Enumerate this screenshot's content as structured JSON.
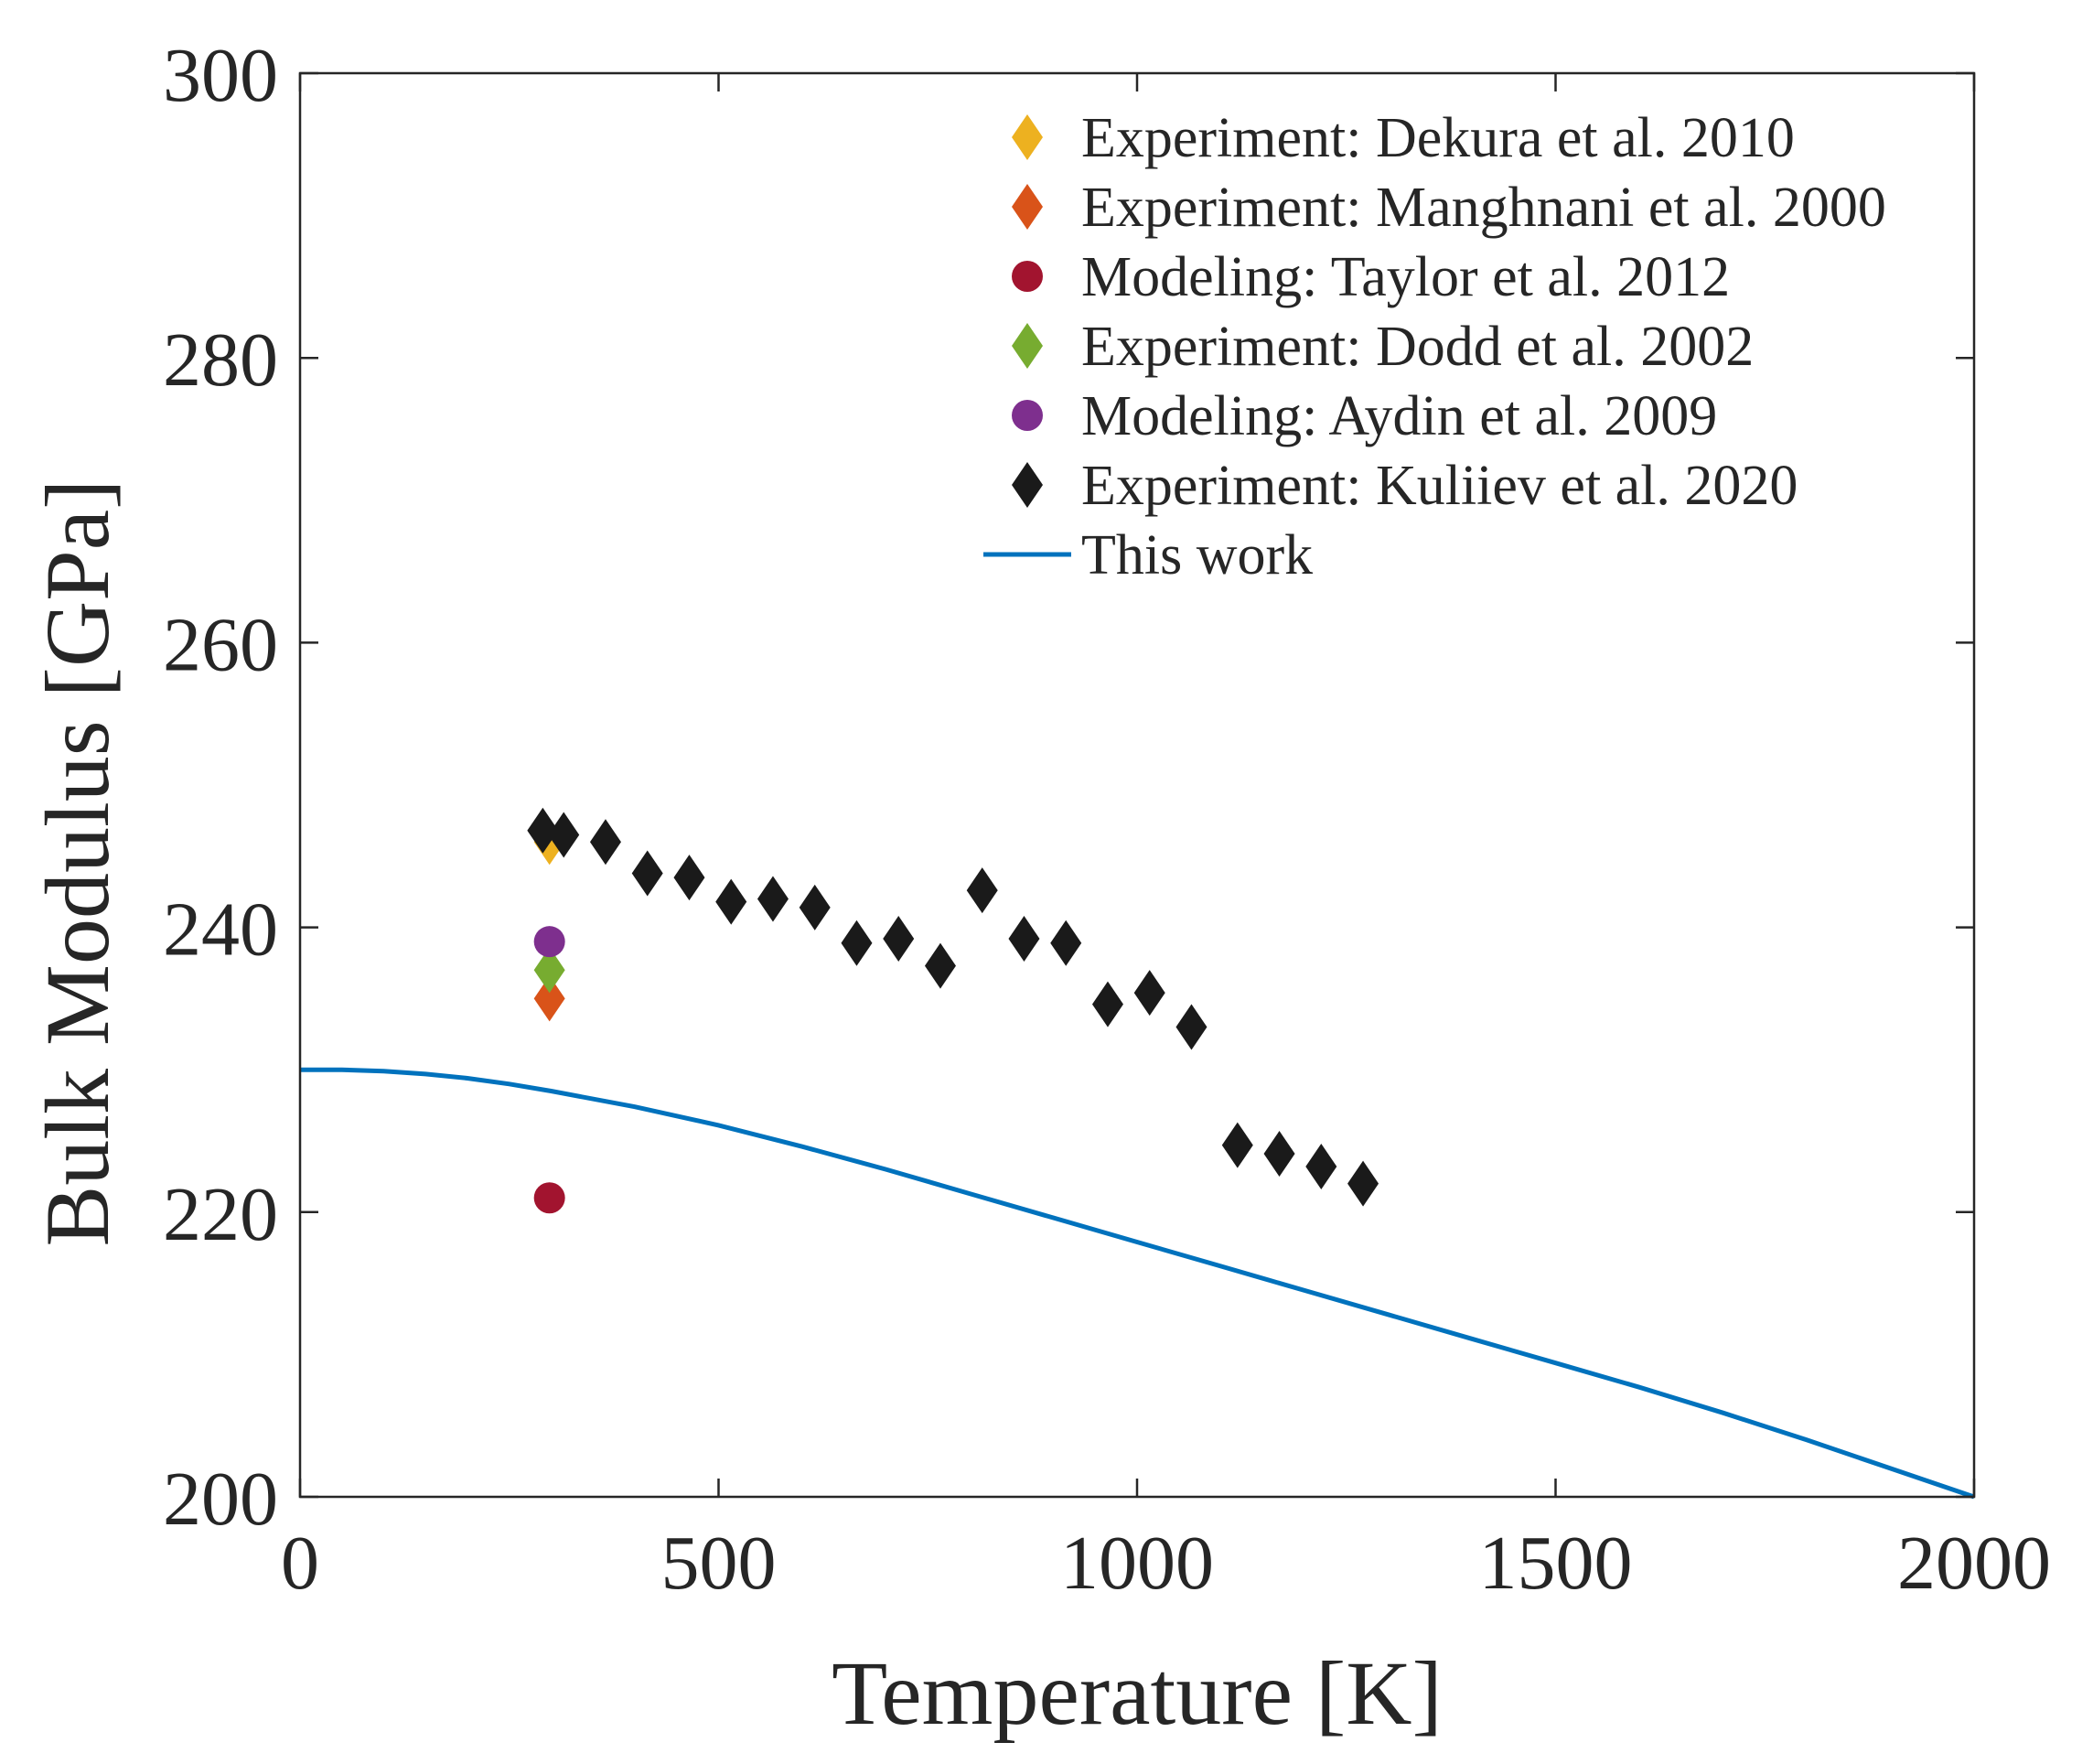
{
  "chart_data": {
    "type": "scatter",
    "xlabel": "Temperature [K]",
    "ylabel": "Bulk Modulus [GPa]",
    "xlim": [
      0,
      2000
    ],
    "ylim": [
      200,
      300
    ],
    "xticks": [
      0,
      500,
      1000,
      1500,
      2000
    ],
    "yticks": [
      200,
      220,
      240,
      260,
      280,
      300
    ],
    "xtick_labels": [
      "0",
      "500",
      "1000",
      "1500",
      "2000"
    ],
    "ytick_labels": [
      "200",
      "220",
      "240",
      "260",
      "280",
      "300"
    ],
    "grid": false,
    "legend_position": "top-right",
    "series": [
      {
        "name": "Experiment: Dekura et al. 2010",
        "marker": "diamond",
        "color": "#EDB120",
        "points": [
          [
            298,
            246
          ]
        ]
      },
      {
        "name": "Experiment: Manghnani et al. 2000",
        "marker": "diamond",
        "color": "#D95319",
        "points": [
          [
            298,
            235
          ]
        ]
      },
      {
        "name": "Modeling: Taylor et al. 2012",
        "marker": "circle",
        "color": "#A2142F",
        "points": [
          [
            298,
            221
          ]
        ]
      },
      {
        "name": "Experiment: Dodd et al. 2002",
        "marker": "diamond",
        "color": "#77AC30",
        "points": [
          [
            298,
            237
          ]
        ]
      },
      {
        "name": "Modeling: Aydin et al. 2009",
        "marker": "circle",
        "color": "#7E2F8E",
        "points": [
          [
            298,
            239
          ]
        ]
      },
      {
        "name": "Experiment: Kuliiev et al. 2020",
        "marker": "diamond",
        "color": "#1a1a1a",
        "points": [
          [
            290,
            246.8
          ],
          [
            315,
            246.5
          ],
          [
            365,
            246.0
          ],
          [
            415,
            243.8
          ],
          [
            465,
            243.5
          ],
          [
            515,
            241.8
          ],
          [
            565,
            242.0
          ],
          [
            615,
            241.4
          ],
          [
            665,
            238.9
          ],
          [
            715,
            239.2
          ],
          [
            765,
            237.3
          ],
          [
            815,
            242.6
          ],
          [
            865,
            239.2
          ],
          [
            915,
            238.9
          ],
          [
            965,
            234.6
          ],
          [
            1015,
            235.4
          ],
          [
            1065,
            233.0
          ],
          [
            1120,
            224.7
          ],
          [
            1170,
            224.1
          ],
          [
            1220,
            223.2
          ],
          [
            1270,
            222.0
          ]
        ]
      },
      {
        "name": "This work",
        "marker": "line",
        "color": "#0072BD",
        "points": [
          [
            0,
            230.0
          ],
          [
            50,
            230.0
          ],
          [
            100,
            229.9
          ],
          [
            150,
            229.7
          ],
          [
            200,
            229.4
          ],
          [
            250,
            229.0
          ],
          [
            300,
            228.5
          ],
          [
            400,
            227.4
          ],
          [
            500,
            226.1
          ],
          [
            600,
            224.6
          ],
          [
            700,
            223.0
          ],
          [
            800,
            221.3
          ],
          [
            900,
            219.6
          ],
          [
            1000,
            217.9
          ],
          [
            1100,
            216.2
          ],
          [
            1200,
            214.5
          ],
          [
            1300,
            212.8
          ],
          [
            1400,
            211.1
          ],
          [
            1500,
            209.4
          ],
          [
            1600,
            207.7
          ],
          [
            1700,
            205.9
          ],
          [
            1800,
            204.0
          ],
          [
            1900,
            202.0
          ],
          [
            2000,
            200.0
          ]
        ]
      }
    ]
  }
}
